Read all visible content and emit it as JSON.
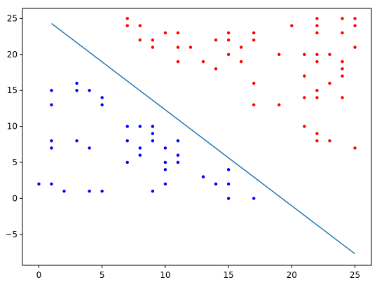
{
  "chart_data": {
    "type": "scatter",
    "title": "",
    "xlabel": "",
    "ylabel": "",
    "xlim": [
      -1.3,
      26.3
    ],
    "ylim": [
      -9.3,
      26.4
    ],
    "x_ticks": [
      0,
      5,
      10,
      15,
      20,
      25
    ],
    "y_ticks": [
      -5,
      0,
      5,
      10,
      15,
      20,
      25
    ],
    "grid": false,
    "legend": "none",
    "series": [
      {
        "color": "#0000ff",
        "points": [
          [
            0,
            2
          ],
          [
            1,
            2
          ],
          [
            2,
            1
          ],
          [
            1,
            15
          ],
          [
            1,
            13
          ],
          [
            1,
            8
          ],
          [
            1,
            7
          ],
          [
            3,
            16
          ],
          [
            3,
            15
          ],
          [
            3,
            8
          ],
          [
            4,
            15
          ],
          [
            4,
            7
          ],
          [
            4,
            1
          ],
          [
            5,
            14
          ],
          [
            5,
            13
          ],
          [
            5,
            1
          ],
          [
            7,
            10
          ],
          [
            7,
            8
          ],
          [
            7,
            5
          ],
          [
            8,
            10
          ],
          [
            8,
            7
          ],
          [
            8,
            6
          ],
          [
            9,
            10
          ],
          [
            9,
            9
          ],
          [
            9,
            8
          ],
          [
            9,
            1
          ],
          [
            10,
            7
          ],
          [
            10,
            5
          ],
          [
            10,
            4
          ],
          [
            10,
            2
          ],
          [
            11,
            8
          ],
          [
            11,
            6
          ],
          [
            11,
            5
          ],
          [
            13,
            3
          ],
          [
            14,
            2
          ],
          [
            15,
            4
          ],
          [
            15,
            2
          ],
          [
            15,
            0
          ],
          [
            17,
            0
          ]
        ]
      },
      {
        "color": "#ff0000",
        "points": [
          [
            7,
            25
          ],
          [
            7,
            24
          ],
          [
            8,
            24
          ],
          [
            8,
            22
          ],
          [
            9,
            22
          ],
          [
            9,
            21
          ],
          [
            10,
            23
          ],
          [
            11,
            23
          ],
          [
            11,
            21
          ],
          [
            11,
            19
          ],
          [
            12,
            21
          ],
          [
            13,
            19
          ],
          [
            14,
            22
          ],
          [
            14,
            18
          ],
          [
            15,
            23
          ],
          [
            15,
            22
          ],
          [
            15,
            20
          ],
          [
            16,
            21
          ],
          [
            16,
            19
          ],
          [
            17,
            23
          ],
          [
            17,
            22
          ],
          [
            17,
            16
          ],
          [
            17,
            13
          ],
          [
            19,
            20
          ],
          [
            19,
            13
          ],
          [
            20,
            24
          ],
          [
            21,
            20
          ],
          [
            21,
            17
          ],
          [
            21,
            14
          ],
          [
            21,
            10
          ],
          [
            22,
            25
          ],
          [
            22,
            24
          ],
          [
            22,
            23
          ],
          [
            22,
            20
          ],
          [
            22,
            19
          ],
          [
            22,
            15
          ],
          [
            22,
            14
          ],
          [
            22,
            9
          ],
          [
            22,
            8
          ],
          [
            23,
            20
          ],
          [
            23,
            16
          ],
          [
            23,
            8
          ],
          [
            24,
            25
          ],
          [
            24,
            23
          ],
          [
            24,
            19
          ],
          [
            24,
            18
          ],
          [
            24,
            17
          ],
          [
            24,
            14
          ],
          [
            25,
            25
          ],
          [
            25,
            24
          ],
          [
            25,
            21
          ],
          [
            25,
            7
          ]
        ]
      },
      {
        "type": "line",
        "color": "#1f77b4",
        "points": [
          [
            1,
            24.3
          ],
          [
            25,
            -7.7
          ]
        ]
      }
    ]
  }
}
